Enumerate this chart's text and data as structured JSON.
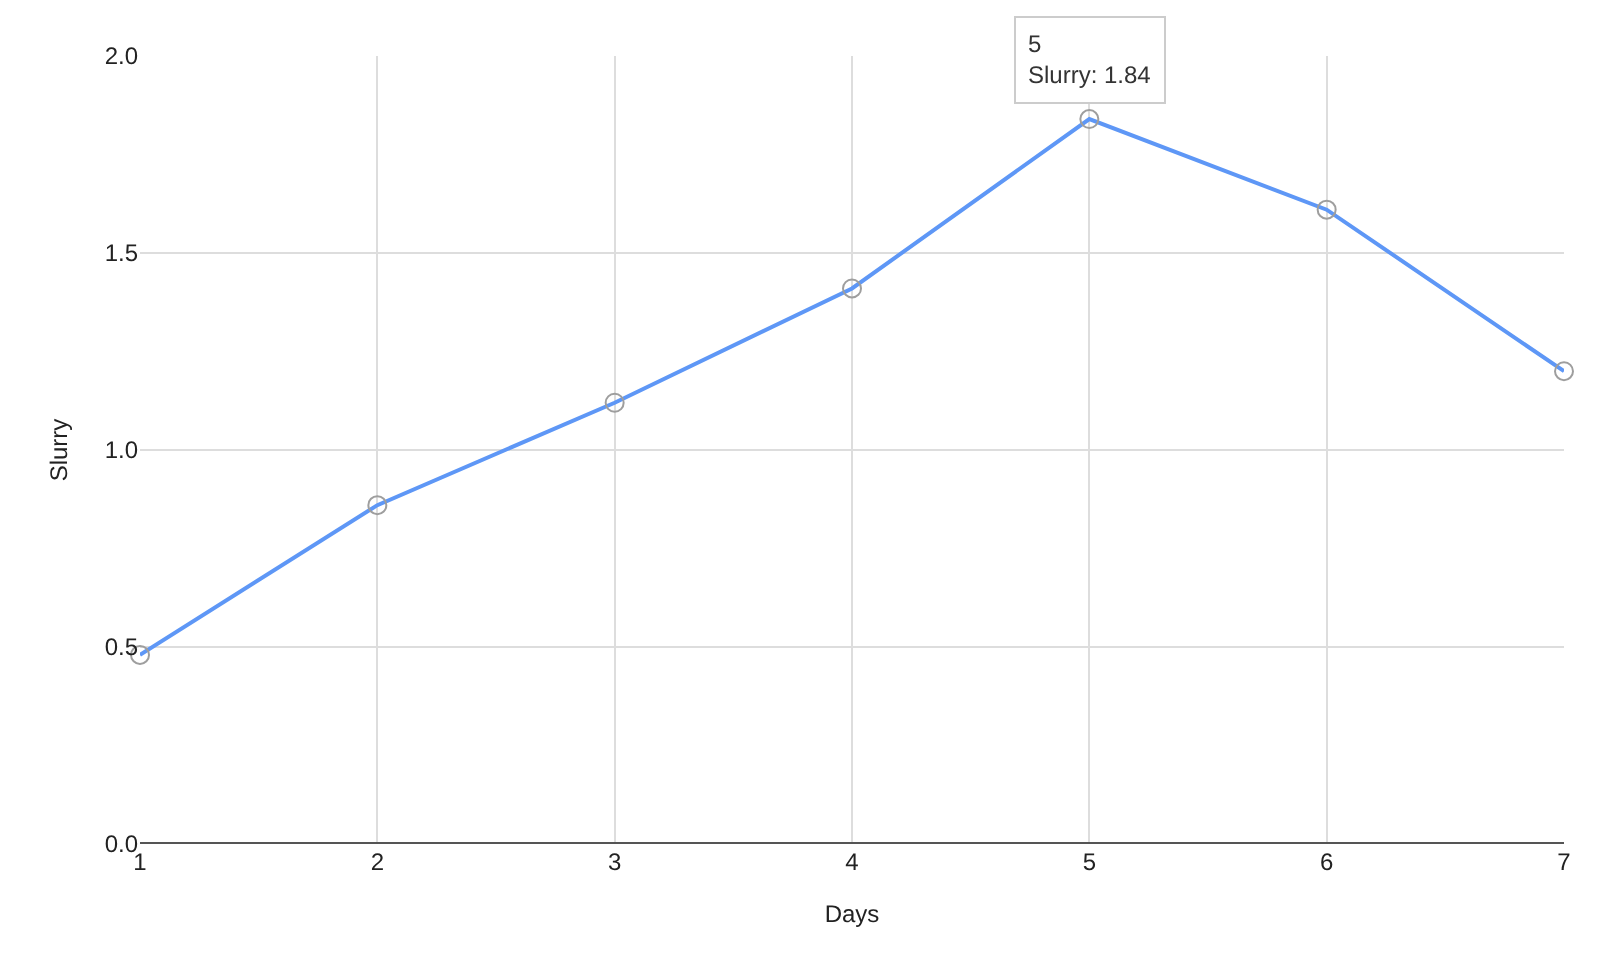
{
  "chart_data": {
    "type": "line",
    "xlabel": "Days",
    "ylabel": "Slurry",
    "x": [
      1,
      2,
      3,
      4,
      5,
      6,
      7
    ],
    "series": [
      {
        "color": "#5e97f6",
        "values": [
          0.48,
          0.86,
          1.12,
          1.41,
          1.84,
          1.61,
          1.2
        ]
      }
    ],
    "xlim": [
      1,
      7
    ],
    "xticks": [
      1,
      2,
      3,
      4,
      5,
      6,
      7
    ],
    "ylim": [
      0,
      2
    ],
    "yticks": [
      {
        "value": 0,
        "label": "0.0"
      },
      {
        "value": 0.5,
        "label": "0.5"
      },
      {
        "value": 1,
        "label": "1.0"
      },
      {
        "value": 1.5,
        "label": "1.5"
      },
      {
        "value": 2,
        "label": "2.0"
      }
    ],
    "grid": true,
    "marker": "circle",
    "line_style": "solid",
    "annotations": [
      {
        "text": "5\nSlurry: 1.84",
        "x": 5,
        "y": 1.84
      }
    ]
  }
}
